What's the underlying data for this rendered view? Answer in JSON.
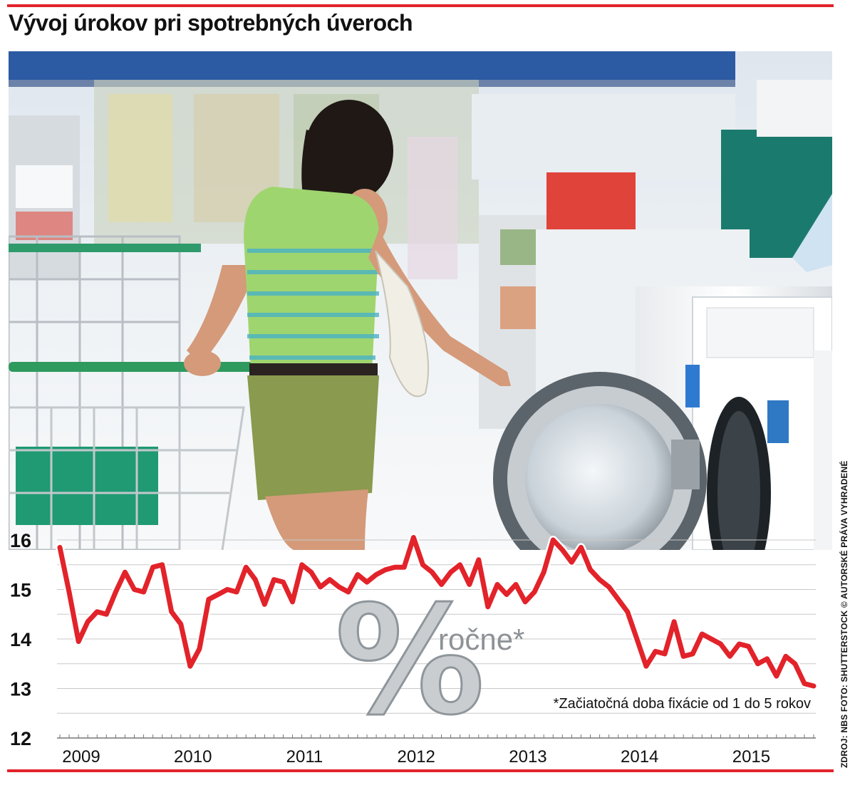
{
  "header": {
    "title": "Vývoj úrokov pri spotrebných úveroch"
  },
  "credit": "ZDROJ: NBS  FOTO: SHUTTERSTOCK © AUTORSKÉ PRÁVA VYHRADENÉ",
  "overlay": {
    "percent_label": "ročne*"
  },
  "colors": {
    "line": "#e2232a",
    "accent_rule": "#e2232a",
    "grid": "#c8c8c8"
  },
  "chart_data": {
    "type": "line",
    "title": "Vývoj úrokov pri spotrebných úveroch",
    "unit": "% ročne*",
    "footnote": "*Začiatočná doba fixácie od 1 do 5 rokov",
    "yticks": [
      12,
      13,
      14,
      15,
      16
    ],
    "ylim": [
      12,
      16.2
    ],
    "xticks": [
      "2009",
      "2010",
      "2011",
      "2012",
      "2013",
      "2014",
      "2015"
    ],
    "xlim": [
      2009,
      2015.75
    ],
    "grid": true,
    "series": [
      {
        "x": [
          2009.0,
          2009.083,
          2009.167,
          2009.25,
          2009.333,
          2009.417,
          2009.5,
          2009.583,
          2009.667,
          2009.75,
          2009.833,
          2009.917,
          2010.0,
          2010.083,
          2010.167,
          2010.25,
          2010.333,
          2010.417,
          2010.5,
          2010.583,
          2010.667,
          2010.75,
          2010.833,
          2010.917,
          2011.0,
          2011.083,
          2011.167,
          2011.25,
          2011.333,
          2011.417,
          2011.5,
          2011.583,
          2011.667,
          2011.75,
          2011.833,
          2011.917,
          2012.0,
          2012.083,
          2012.167,
          2012.25,
          2012.333,
          2012.417,
          2012.5,
          2012.583,
          2012.667,
          2012.75,
          2012.833,
          2012.917,
          2013.0,
          2013.083,
          2013.167,
          2013.25,
          2013.333,
          2013.417,
          2013.5,
          2013.583,
          2013.667,
          2013.75,
          2013.833,
          2013.917,
          2014.0,
          2014.083,
          2014.167,
          2014.25,
          2014.333,
          2014.417,
          2014.5,
          2014.583,
          2014.667,
          2014.75,
          2014.833,
          2014.917,
          2015.0,
          2015.083,
          2015.167,
          2015.25,
          2015.333,
          2015.417,
          2015.5,
          2015.583,
          2015.667,
          2015.75
        ],
        "values": [
          15.85,
          14.95,
          13.95,
          14.35,
          14.55,
          14.5,
          14.95,
          15.35,
          15.0,
          14.95,
          15.45,
          15.5,
          14.55,
          14.3,
          13.45,
          13.8,
          14.8,
          14.9,
          15.0,
          14.95,
          15.45,
          15.2,
          14.7,
          15.2,
          15.15,
          14.75,
          15.5,
          15.35,
          15.05,
          15.2,
          15.05,
          14.95,
          15.3,
          15.15,
          15.3,
          15.4,
          15.45,
          15.45,
          16.05,
          15.5,
          15.35,
          15.1,
          15.35,
          15.5,
          15.1,
          15.6,
          14.65,
          15.1,
          14.9,
          15.1,
          14.75,
          14.95,
          15.35,
          16.0,
          15.8,
          15.55,
          15.85,
          15.4,
          15.2,
          15.05,
          14.8,
          14.55,
          14.0,
          13.45,
          13.75,
          13.7,
          14.35,
          13.65,
          13.7,
          14.1,
          14.0,
          13.9,
          13.65,
          13.9,
          13.85,
          13.5,
          13.6,
          13.25,
          13.65,
          13.5,
          13.1,
          13.05
        ]
      }
    ]
  }
}
